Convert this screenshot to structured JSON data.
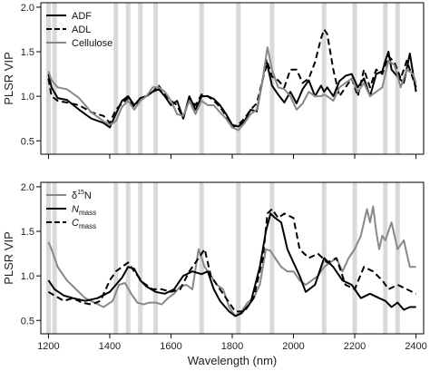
{
  "chart_data": [
    {
      "type": "line",
      "ylabel": "PLSR VIP",
      "xlim": [
        1175,
        2425
      ],
      "ylim": [
        0.35,
        2.05
      ],
      "yticks": [
        0.5,
        1.0,
        1.5,
        2.0
      ],
      "ytick_labels": [
        "0.5",
        "1.0",
        "1.5",
        "2.0"
      ],
      "legend_position": "top-left",
      "highlight_bands": [
        1200,
        1220,
        1420,
        1460,
        1500,
        1550,
        1700,
        1820,
        1930,
        2100,
        2200,
        2300,
        2340
      ],
      "series": [
        {
          "name": "ADF",
          "style": "solid",
          "color": "#000000",
          "x": [
            1200,
            1210,
            1230,
            1260,
            1300,
            1340,
            1380,
            1400,
            1420,
            1440,
            1460,
            1480,
            1500,
            1520,
            1540,
            1560,
            1580,
            1600,
            1620,
            1640,
            1660,
            1680,
            1700,
            1720,
            1740,
            1760,
            1780,
            1800,
            1820,
            1840,
            1860,
            1880,
            1900,
            1910,
            1930,
            1950,
            1970,
            1990,
            2010,
            2030,
            2050,
            2070,
            2090,
            2100,
            2110,
            2130,
            2150,
            2170,
            2190,
            2210,
            2230,
            2250,
            2270,
            2290,
            2300,
            2310,
            2320,
            2340,
            2360,
            2380,
            2400
          ],
          "y": [
            1.25,
            1.1,
            0.98,
            0.96,
            0.85,
            0.75,
            0.7,
            0.65,
            0.8,
            0.95,
            1.0,
            0.9,
            0.98,
            1.0,
            1.05,
            1.08,
            1.0,
            0.9,
            0.95,
            0.75,
            1.0,
            0.85,
            1.0,
            1.0,
            0.97,
            0.9,
            0.8,
            0.68,
            0.66,
            0.72,
            0.85,
            0.83,
            1.2,
            1.42,
            1.12,
            1.02,
            0.93,
            1.05,
            0.92,
            1.08,
            1.18,
            1.0,
            1.12,
            1.05,
            1.1,
            1.0,
            1.17,
            1.23,
            1.25,
            1.1,
            1.2,
            1.0,
            1.25,
            1.28,
            1.4,
            1.5,
            1.3,
            1.22,
            1.15,
            1.48,
            1.05
          ]
        },
        {
          "name": "ADL",
          "style": "dashed",
          "color": "#000000",
          "x": [
            1200,
            1210,
            1230,
            1260,
            1300,
            1340,
            1380,
            1400,
            1420,
            1440,
            1460,
            1480,
            1500,
            1520,
            1540,
            1560,
            1580,
            1600,
            1620,
            1640,
            1660,
            1680,
            1700,
            1720,
            1740,
            1760,
            1780,
            1800,
            1820,
            1840,
            1860,
            1880,
            1900,
            1915,
            1930,
            1950,
            1970,
            1990,
            2010,
            2030,
            2050,
            2070,
            2090,
            2100,
            2110,
            2130,
            2150,
            2170,
            2190,
            2210,
            2230,
            2250,
            2270,
            2290,
            2310,
            2330,
            2350,
            2370,
            2390,
            2400
          ],
          "y": [
            1.2,
            1.0,
            0.95,
            0.93,
            0.9,
            0.82,
            0.78,
            0.7,
            0.85,
            0.92,
            0.98,
            0.88,
            0.98,
            1.0,
            1.05,
            1.12,
            1.02,
            0.95,
            0.9,
            0.75,
            0.98,
            0.9,
            1.02,
            1.0,
            0.95,
            0.88,
            0.78,
            0.65,
            0.68,
            0.75,
            0.85,
            0.92,
            1.2,
            1.38,
            1.22,
            1.18,
            1.1,
            1.3,
            1.3,
            1.15,
            1.2,
            1.38,
            1.65,
            1.75,
            1.7,
            1.3,
            1.0,
            1.1,
            1.2,
            1.0,
            1.3,
            1.1,
            1.3,
            1.25,
            1.45,
            1.38,
            1.2,
            1.4,
            1.2,
            1.1
          ]
        },
        {
          "name": "Cellulose",
          "style": "solid",
          "color": "#888888",
          "x": [
            1200,
            1210,
            1230,
            1260,
            1300,
            1340,
            1380,
            1400,
            1420,
            1440,
            1460,
            1480,
            1500,
            1520,
            1540,
            1560,
            1580,
            1600,
            1620,
            1640,
            1660,
            1680,
            1700,
            1720,
            1740,
            1760,
            1780,
            1800,
            1820,
            1840,
            1860,
            1880,
            1900,
            1915,
            1930,
            1950,
            1970,
            1990,
            2010,
            2030,
            2050,
            2070,
            2090,
            2100,
            2110,
            2130,
            2150,
            2170,
            2190,
            2210,
            2230,
            2250,
            2270,
            2290,
            2300,
            2310,
            2330,
            2350,
            2370,
            2390,
            2400
          ],
          "y": [
            1.28,
            1.18,
            1.1,
            1.08,
            0.98,
            0.82,
            0.72,
            0.68,
            0.72,
            0.88,
            0.95,
            0.85,
            0.95,
            1.0,
            1.1,
            1.1,
            1.05,
            0.95,
            0.8,
            0.78,
            0.95,
            0.8,
            0.95,
            0.9,
            0.9,
            0.82,
            0.75,
            0.65,
            0.62,
            0.7,
            0.8,
            0.85,
            1.2,
            1.55,
            1.3,
            1.1,
            1.08,
            1.0,
            0.85,
            0.92,
            1.05,
            1.0,
            1.0,
            1.02,
            1.0,
            0.95,
            1.1,
            1.15,
            1.2,
            1.05,
            1.15,
            1.0,
            1.05,
            1.1,
            1.25,
            1.4,
            1.35,
            1.1,
            1.3,
            1.25,
            1.15
          ]
        }
      ]
    },
    {
      "type": "line",
      "xlabel": "Wavelength (nm)",
      "ylabel": "PLSR VIP",
      "xlim": [
        1175,
        2425
      ],
      "ylim": [
        0.35,
        2.05
      ],
      "xticks": [
        1200,
        1400,
        1600,
        1800,
        2000,
        2200,
        2400
      ],
      "xtick_labels": [
        "1200",
        "1400",
        "1600",
        "1800",
        "2000",
        "2200",
        "2400"
      ],
      "yticks": [
        0.5,
        1.0,
        1.5,
        2.0
      ],
      "ytick_labels": [
        "0.5",
        "1.0",
        "1.5",
        "2.0"
      ],
      "legend_position": "top-left",
      "highlight_bands": [
        1200,
        1220,
        1420,
        1460,
        1500,
        1550,
        1700,
        1820,
        1930,
        2100,
        2200,
        2300,
        2340
      ],
      "series": [
        {
          "name": "δ",
          "name_sup": "15",
          "name_tail": "N",
          "style": "solid",
          "color": "#888888",
          "x": [
            1200,
            1210,
            1230,
            1260,
            1290,
            1320,
            1350,
            1380,
            1410,
            1430,
            1450,
            1470,
            1490,
            1510,
            1530,
            1550,
            1570,
            1590,
            1610,
            1630,
            1650,
            1670,
            1690,
            1710,
            1730,
            1750,
            1770,
            1790,
            1810,
            1830,
            1850,
            1870,
            1890,
            1910,
            1925,
            1940,
            1960,
            1980,
            2000,
            2020,
            2040,
            2060,
            2080,
            2100,
            2120,
            2140,
            2160,
            2180,
            2200,
            2220,
            2240,
            2250,
            2260,
            2270,
            2280,
            2290,
            2300,
            2320,
            2340,
            2360,
            2380,
            2400
          ],
          "y": [
            1.38,
            1.3,
            1.1,
            0.95,
            0.85,
            0.75,
            0.7,
            0.65,
            0.72,
            0.9,
            0.92,
            0.8,
            0.7,
            0.68,
            0.7,
            0.7,
            0.68,
            0.75,
            0.8,
            0.88,
            0.9,
            0.85,
            1.3,
            1.1,
            1.0,
            0.9,
            0.85,
            0.65,
            0.55,
            0.6,
            0.7,
            0.75,
            0.9,
            1.3,
            1.28,
            1.2,
            1.1,
            1.05,
            1.05,
            0.95,
            0.9,
            0.95,
            1.0,
            1.1,
            1.15,
            1.2,
            1.05,
            1.2,
            1.3,
            1.45,
            1.75,
            1.6,
            1.78,
            1.5,
            1.3,
            1.45,
            1.4,
            1.6,
            1.3,
            1.4,
            1.1,
            1.1
          ]
        },
        {
          "name": "N",
          "name_sub": "mass",
          "style": "solid",
          "color": "#000000",
          "x": [
            1200,
            1220,
            1250,
            1280,
            1320,
            1360,
            1400,
            1420,
            1440,
            1460,
            1480,
            1500,
            1520,
            1550,
            1580,
            1610,
            1640,
            1670,
            1700,
            1720,
            1740,
            1760,
            1790,
            1810,
            1830,
            1860,
            1890,
            1910,
            1925,
            1940,
            1960,
            1980,
            2000,
            2020,
            2040,
            2070,
            2100,
            2130,
            2160,
            2190,
            2220,
            2250,
            2280,
            2300,
            2320,
            2340,
            2360,
            2380,
            2400
          ],
          "y": [
            0.95,
            0.85,
            0.78,
            0.75,
            0.72,
            0.75,
            0.82,
            0.9,
            0.98,
            1.1,
            1.08,
            0.95,
            0.88,
            0.82,
            0.8,
            0.85,
            1.0,
            1.05,
            1.02,
            1.05,
            0.85,
            0.72,
            0.6,
            0.55,
            0.58,
            0.7,
            1.1,
            1.5,
            1.7,
            1.65,
            1.6,
            1.3,
            1.15,
            1.0,
            0.82,
            0.9,
            1.2,
            1.1,
            0.95,
            0.9,
            0.75,
            0.8,
            0.75,
            0.72,
            0.65,
            0.7,
            0.62,
            0.65,
            0.65
          ]
        },
        {
          "name": "C",
          "name_sub": "mass",
          "style": "dashed",
          "color": "#000000",
          "x": [
            1200,
            1220,
            1250,
            1280,
            1310,
            1340,
            1370,
            1400,
            1420,
            1440,
            1460,
            1480,
            1510,
            1540,
            1570,
            1600,
            1630,
            1660,
            1690,
            1710,
            1730,
            1750,
            1780,
            1810,
            1840,
            1870,
            1900,
            1915,
            1930,
            1950,
            1970,
            2000,
            2020,
            2050,
            2080,
            2110,
            2140,
            2170,
            2200,
            2230,
            2260,
            2290,
            2310,
            2340,
            2370,
            2400
          ],
          "y": [
            0.82,
            0.78,
            0.72,
            0.75,
            0.7,
            0.68,
            0.72,
            0.95,
            1.05,
            1.1,
            1.15,
            1.05,
            0.92,
            0.85,
            0.85,
            0.82,
            0.85,
            1.05,
            1.2,
            1.3,
            1.0,
            0.9,
            0.75,
            0.6,
            0.6,
            0.75,
            1.2,
            1.7,
            1.75,
            1.65,
            1.7,
            1.65,
            1.3,
            1.2,
            1.25,
            1.15,
            1.2,
            0.9,
            0.85,
            1.1,
            1.05,
            0.95,
            0.85,
            0.9,
            0.85,
            0.8
          ]
        }
      ]
    }
  ]
}
